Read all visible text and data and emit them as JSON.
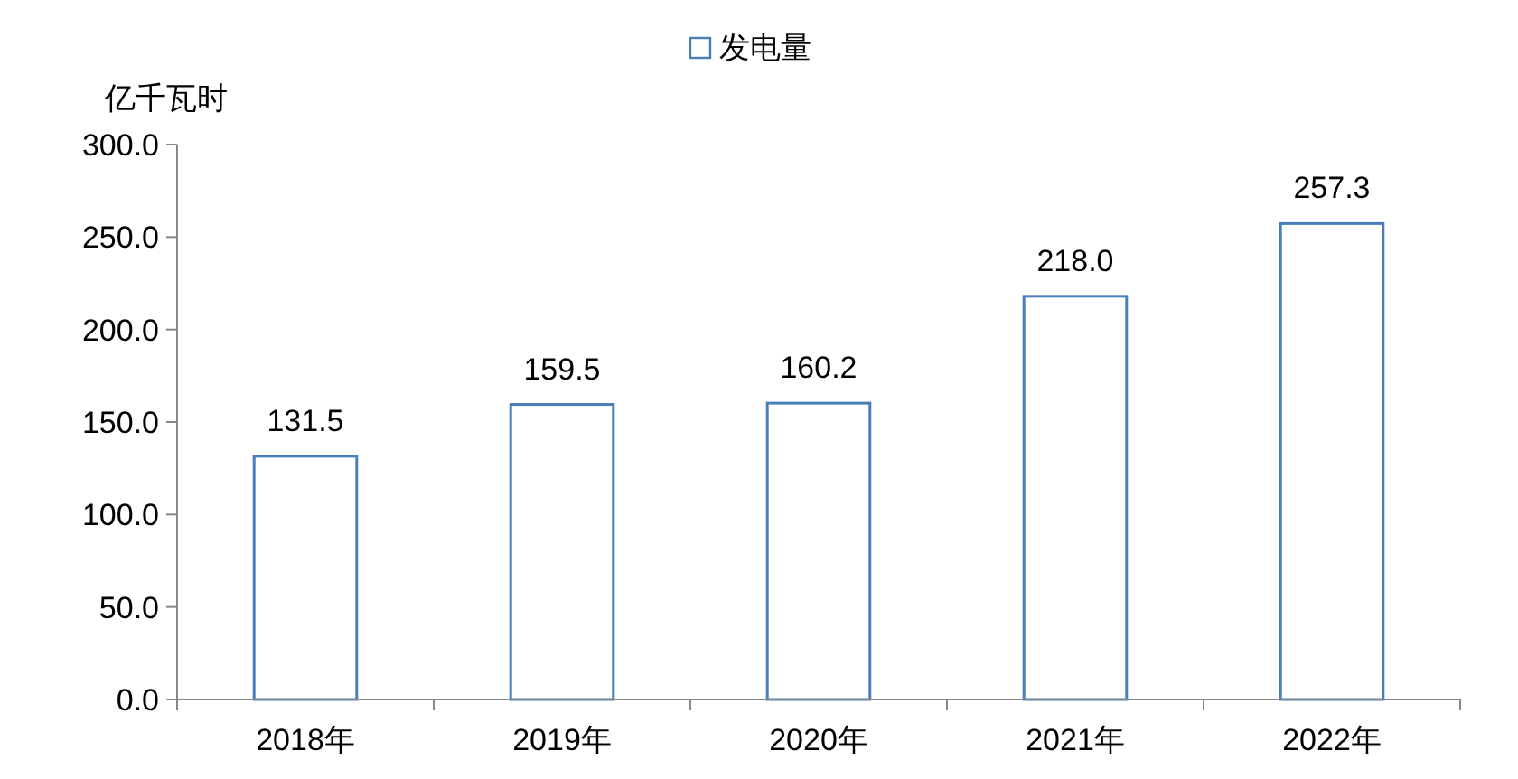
{
  "chart_data": {
    "type": "bar",
    "categories": [
      "2018年",
      "2019年",
      "2020年",
      "2021年",
      "2022年"
    ],
    "series": [
      {
        "name": "发电量",
        "color": "#4a7ebb",
        "values": [
          131.5,
          159.5,
          160.2,
          218.0,
          257.3
        ],
        "value_labels": [
          "131.5",
          "159.5",
          "160.2",
          "218.0",
          "257.3"
        ]
      }
    ],
    "ylabel": "亿千瓦时",
    "ylim": [
      0,
      300
    ],
    "yticks": [
      {
        "value": 0,
        "label": "0.0"
      },
      {
        "value": 50,
        "label": "50.0"
      },
      {
        "value": 100,
        "label": "100.0"
      },
      {
        "value": 150,
        "label": "150.0"
      },
      {
        "value": 200,
        "label": "200.0"
      },
      {
        "value": 250,
        "label": "250.0"
      },
      {
        "value": 300,
        "label": "300.0"
      }
    ],
    "legend": "top",
    "grid": false
  }
}
